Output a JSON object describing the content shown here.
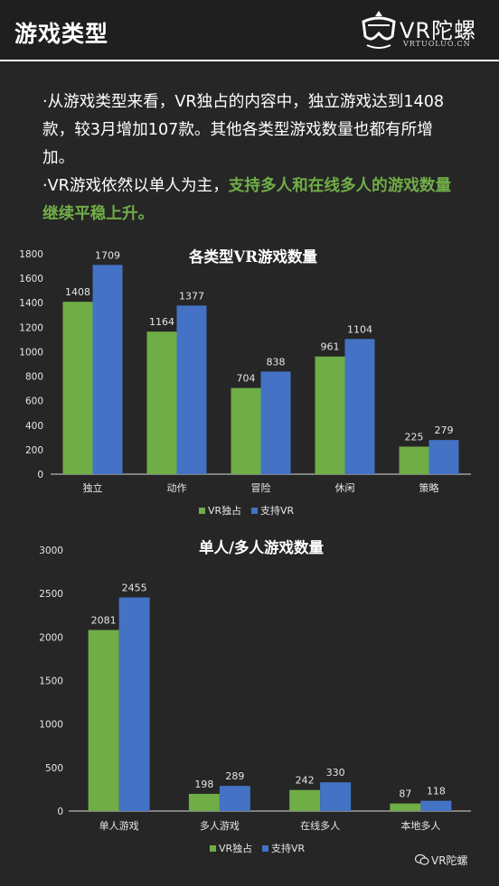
{
  "header": {
    "title": "游戏类型",
    "logo_text": "VR陀螺",
    "logo_sub": "VRTUOLUO.CN"
  },
  "intro": {
    "p1": "·从游戏类型来看，VR独占的内容中，独立游戏达到1408款，较3月增加107款。其他各类型游戏数量也都有所增加。",
    "p2_plain": "·VR游戏依然以单人为主，",
    "p2_highlight": "支持多人和在线多人的游戏数量继续平稳上升。"
  },
  "colors": {
    "green": "#70ad47",
    "blue": "#4472c4"
  },
  "chart_data": [
    {
      "type": "bar",
      "title": "各类型VR游戏数量",
      "categories": [
        "独立",
        "动作",
        "冒险",
        "休闲",
        "策略"
      ],
      "series": [
        {
          "name": "VR独占",
          "color": "#70ad47",
          "values": [
            1408,
            1164,
            704,
            961,
            225
          ]
        },
        {
          "name": "支持VR",
          "color": "#4472c4",
          "values": [
            1709,
            1377,
            838,
            1104,
            279
          ]
        }
      ],
      "yticks": [
        0,
        200,
        400,
        600,
        800,
        1000,
        1200,
        1400,
        1600,
        1800
      ],
      "ylim": [
        0,
        1800
      ],
      "legend": "bottom"
    },
    {
      "type": "bar",
      "title": "单人/多人游戏数量",
      "categories": [
        "单人游戏",
        "多人游戏",
        "在线多人",
        "本地多人"
      ],
      "series": [
        {
          "name": "VR独占",
          "color": "#70ad47",
          "values": [
            2081,
            198,
            242,
            87
          ]
        },
        {
          "name": "支持VR",
          "color": "#4472c4",
          "values": [
            2455,
            289,
            330,
            118
          ]
        }
      ],
      "yticks": [
        0,
        500,
        1000,
        1500,
        2000,
        2500,
        3000
      ],
      "ylim": [
        0,
        3000
      ],
      "legend": "bottom"
    }
  ],
  "watermark": {
    "text": "VR陀螺"
  }
}
